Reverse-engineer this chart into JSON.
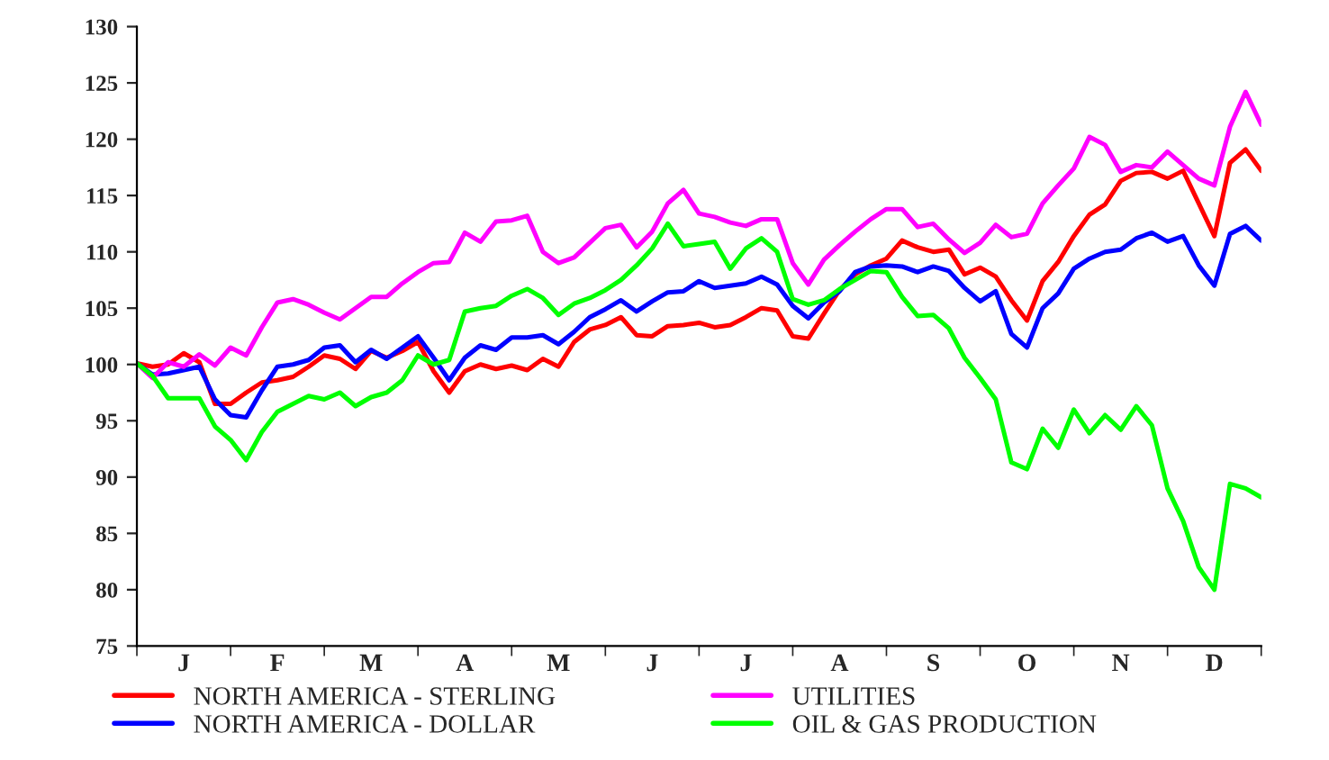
{
  "chart_data": {
    "type": "line",
    "categories": [
      null,
      null,
      null,
      "J",
      null,
      null,
      null,
      null,
      null,
      "F",
      null,
      null,
      null,
      null,
      null,
      "M",
      null,
      null,
      null,
      null,
      null,
      "A",
      null,
      null,
      null,
      null,
      null,
      "M",
      null,
      null,
      null,
      null,
      null,
      "J",
      null,
      null,
      null,
      null,
      null,
      "J",
      null,
      null,
      null,
      null,
      null,
      "A",
      null,
      null,
      null,
      null,
      null,
      "S",
      null,
      null,
      null,
      null,
      null,
      "O",
      null,
      null,
      null,
      null,
      null,
      "N",
      null,
      null,
      null,
      null,
      null,
      "D",
      null,
      null,
      null
    ],
    "ylim": [
      75,
      130
    ],
    "yticks": [
      75,
      80,
      85,
      90,
      95,
      100,
      105,
      110,
      115,
      120,
      125,
      130
    ],
    "legend": "bottom",
    "grid": false,
    "line_style": "solid",
    "marker": "none",
    "series": [
      {
        "name": "NORTH AMERICA - STERLING",
        "color": "#ff0000",
        "values": [
          100.1,
          99.8,
          100,
          101,
          100.2,
          96.5,
          96.5,
          97.5,
          98.4,
          98.6,
          98.9,
          99.8,
          100.8,
          100.5,
          99.6,
          101.2,
          100.6,
          101.2,
          102,
          99.4,
          97.5,
          99.4,
          100,
          99.6,
          99.9,
          99.5,
          100.5,
          99.8,
          102,
          103.1,
          103.5,
          104.2,
          102.6,
          102.5,
          103.4,
          103.5,
          103.7,
          103.3,
          103.5,
          104.2,
          105,
          104.8,
          102.5,
          102.3,
          104.5,
          106.6,
          108,
          108.8,
          109.4,
          111,
          110.4,
          110,
          110.2,
          108,
          108.6,
          107.8,
          105.7,
          103.9,
          107.4,
          109.1,
          111.4,
          113.3,
          114.2,
          116.3,
          117,
          117.1,
          116.5,
          117.2,
          114.3,
          111.4,
          117.9,
          119.1,
          117.2
        ]
      },
      {
        "name": "NORTH AMERICA - DOLLAR",
        "color": "#0000ff",
        "values": [
          100.1,
          99.1,
          99.2,
          99.5,
          99.8,
          96.9,
          95.5,
          95.3,
          97.7,
          99.8,
          100,
          100.4,
          101.5,
          101.7,
          100.2,
          101.3,
          100.5,
          101.5,
          102.5,
          100.6,
          98.6,
          100.6,
          101.7,
          101.3,
          102.4,
          102.4,
          102.6,
          101.8,
          102.9,
          104.2,
          104.9,
          105.7,
          104.7,
          105.6,
          106.4,
          106.5,
          107.4,
          106.8,
          107,
          107.2,
          107.8,
          107.1,
          105.2,
          104.1,
          105.5,
          106.5,
          108.2,
          108.7,
          108.8,
          108.7,
          108.2,
          108.7,
          108.3,
          106.8,
          105.6,
          106.5,
          102.7,
          101.5,
          105,
          106.3,
          108.5,
          109.4,
          110,
          110.2,
          111.2,
          111.7,
          110.9,
          111.4,
          108.8,
          107,
          111.6,
          112.3,
          111
        ]
      },
      {
        "name": "UTILITIES",
        "color": "#ff00ff",
        "values": [
          100.1,
          98.8,
          100.2,
          99.8,
          100.9,
          99.9,
          101.5,
          100.8,
          103.3,
          105.5,
          105.8,
          105.3,
          104.6,
          104,
          105,
          106,
          106,
          107.2,
          108.2,
          109,
          109.1,
          111.7,
          110.9,
          112.7,
          112.8,
          113.2,
          110,
          109,
          109.5,
          110.8,
          112.1,
          112.4,
          110.4,
          111.8,
          114.3,
          115.5,
          113.4,
          113.1,
          112.6,
          112.3,
          112.9,
          112.9,
          109,
          107.1,
          109.3,
          110.6,
          111.8,
          112.9,
          113.8,
          113.8,
          112.2,
          112.5,
          111.1,
          109.9,
          110.8,
          112.4,
          111.3,
          111.6,
          114.3,
          115.9,
          117.4,
          120.2,
          119.5,
          117.1,
          117.7,
          117.5,
          118.9,
          117.7,
          116.5,
          115.9,
          121.1,
          124.2,
          121.3
        ]
      },
      {
        "name": "OIL & GAS PRODUCTION",
        "color": "#00ff00",
        "values": [
          100.1,
          99,
          97,
          97,
          97,
          94.5,
          93.3,
          91.5,
          94,
          95.8,
          96.5,
          97.2,
          96.9,
          97.5,
          96.3,
          97.1,
          97.5,
          98.6,
          100.8,
          100,
          100.4,
          104.7,
          105,
          105.2,
          106.1,
          106.7,
          105.9,
          104.4,
          105.4,
          105.9,
          106.6,
          107.5,
          108.8,
          110.3,
          112.5,
          110.5,
          110.7,
          110.9,
          108.5,
          110.3,
          111.2,
          110,
          105.8,
          105.3,
          105.7,
          106.7,
          107.5,
          108.3,
          108.2,
          106,
          104.3,
          104.4,
          103.2,
          100.6,
          98.8,
          96.9,
          91.3,
          90.7,
          94.3,
          92.6,
          96,
          93.9,
          95.5,
          94.2,
          96.3,
          94.6,
          89,
          86.1,
          82,
          80,
          89.4,
          89,
          88.2
        ]
      }
    ]
  }
}
